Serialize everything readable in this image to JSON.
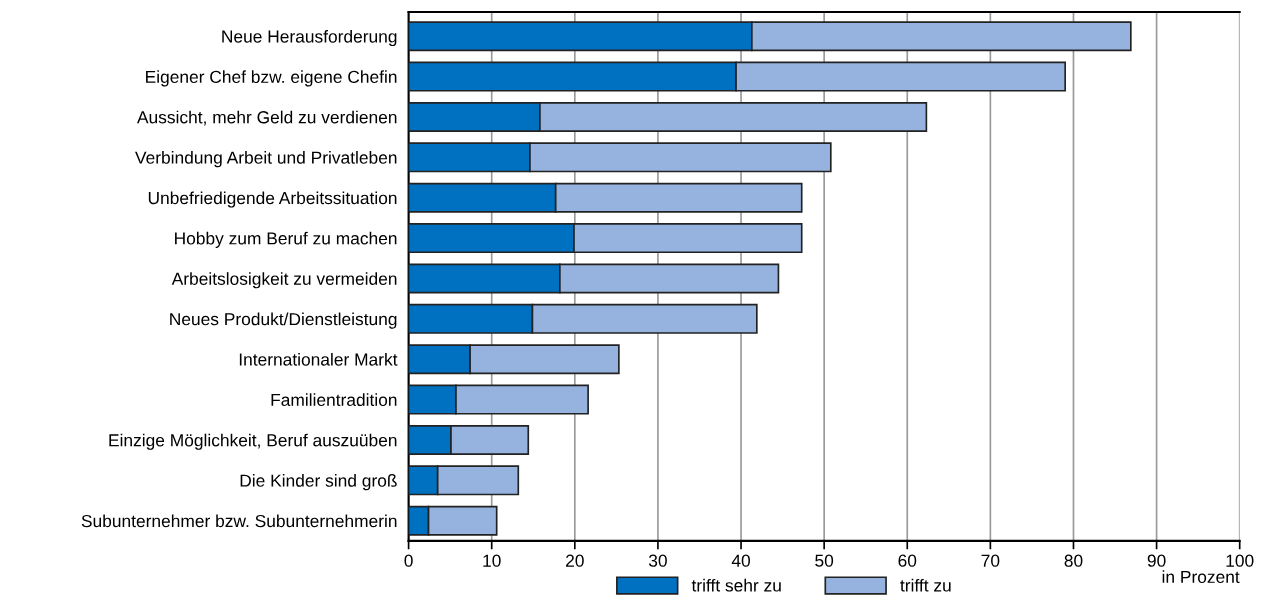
{
  "chart_data": {
    "type": "bar",
    "orientation": "horizontal",
    "stacked": true,
    "categories": [
      "Neue Herausforderung",
      "Eigener Chef bzw. eigene Chefin",
      "Aussicht, mehr Geld zu verdienen",
      "Verbindung Arbeit und Privatleben",
      "Unbefriedigende Arbeitssituation",
      "Hobby zum Beruf zu machen",
      "Arbeitslosigkeit zu vermeiden",
      "Neues Produkt/Dienstleistung",
      "Internationaler Markt",
      "Familientradition",
      "Einzige Möglichkeit, Beruf auszuüben",
      "Die Kinder sind groß",
      "Subunternehmer bzw. Subunternehmerin"
    ],
    "series": [
      {
        "name": "trifft sehr zu",
        "color": "#0070c0",
        "values": [
          41.3,
          39.4,
          15.8,
          14.6,
          17.7,
          19.9,
          18.2,
          14.9,
          7.4,
          5.7,
          5.1,
          3.5,
          2.4
        ]
      },
      {
        "name": "trifft zu",
        "color": "#95b3de",
        "values": [
          45.6,
          39.6,
          46.5,
          36.2,
          29.6,
          27.4,
          26.3,
          27.0,
          17.9,
          15.9,
          9.3,
          9.7,
          8.2
        ]
      }
    ],
    "xlabel": "in Prozent",
    "xlim": [
      0,
      100
    ],
    "xticks": [
      0,
      10,
      20,
      30,
      40,
      50,
      60,
      70,
      80,
      90,
      100
    ],
    "grid": "x",
    "legend": "bottom"
  }
}
